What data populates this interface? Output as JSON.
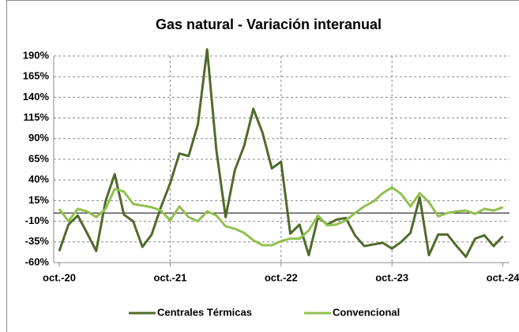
{
  "chart_data": {
    "type": "line",
    "title": "Gas natural - Variación interanual",
    "categories": [
      "oct.-20",
      null,
      null,
      null,
      null,
      null,
      null,
      null,
      null,
      null,
      null,
      null,
      "oct.-21",
      null,
      null,
      null,
      null,
      null,
      null,
      null,
      null,
      null,
      null,
      null,
      "oct.-22",
      null,
      null,
      null,
      null,
      null,
      null,
      null,
      null,
      null,
      null,
      null,
      "oct.-23",
      null,
      null,
      null,
      null,
      null,
      null,
      null,
      null,
      null,
      null,
      null,
      "oct.-24"
    ],
    "series": [
      {
        "name": "Centrales Térmicas",
        "color": "#4f6b2a",
        "values": [
          -46,
          -14,
          -3,
          -24,
          -46,
          14,
          47,
          -2,
          -10,
          -41,
          -26,
          7,
          36,
          72,
          69,
          107,
          198,
          76,
          -5,
          52,
          81,
          126,
          97,
          54,
          62,
          -25,
          -14,
          -51,
          -5,
          -14,
          -8,
          -6,
          -27,
          -40,
          -38,
          -36,
          -43,
          -35,
          -24,
          19,
          -51,
          -26,
          -26,
          -40,
          -53,
          -31,
          -27,
          -40,
          -28
        ]
      },
      {
        "name": "Convencional",
        "color": "#92c050",
        "values": [
          5,
          -10,
          5,
          2,
          -5,
          5,
          29,
          26,
          11,
          9,
          7,
          3,
          -9,
          8,
          -5,
          -10,
          2,
          -3,
          -16,
          -19,
          -24,
          -33,
          -39,
          -39,
          -34,
          -31,
          -31,
          -21,
          -3,
          -15,
          -14,
          -9,
          0,
          8,
          14,
          24,
          31,
          23,
          8,
          24,
          13,
          -4,
          0,
          2,
          3,
          -1,
          5,
          3,
          7
        ]
      }
    ],
    "ylim": [
      -60,
      190
    ],
    "yticks": [
      {
        "value": -60,
        "label": "-60%"
      },
      {
        "value": -35,
        "label": "-35%"
      },
      {
        "value": -10,
        "label": "-10%"
      },
      {
        "value": 15,
        "label": "15%"
      },
      {
        "value": 40,
        "label": "40%"
      },
      {
        "value": 65,
        "label": "65%"
      },
      {
        "value": 90,
        "label": "90%"
      },
      {
        "value": 115,
        "label": "115%"
      },
      {
        "value": 140,
        "label": "140%"
      },
      {
        "value": 165,
        "label": "165%"
      },
      {
        "value": 190,
        "label": "190%"
      }
    ],
    "grid": true,
    "legend": "bottom"
  }
}
